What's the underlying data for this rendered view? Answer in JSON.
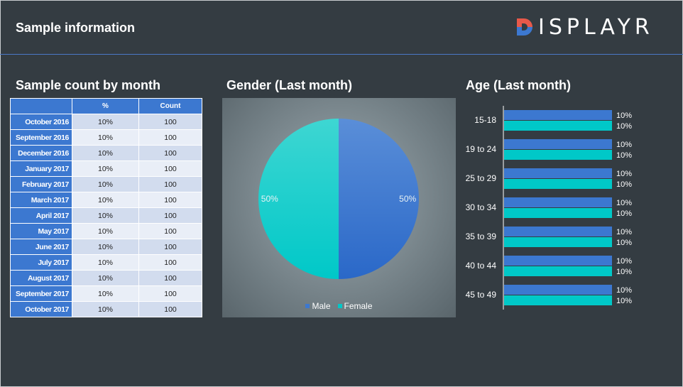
{
  "header": {
    "title": "Sample information",
    "logo_text": "ISPLAYR"
  },
  "sections": {
    "table_title": "Sample count by month",
    "pie_title": "Gender (Last month)",
    "bar_title": "Age (Last month)"
  },
  "colors": {
    "background": "#343c42",
    "blue": "#3c78d0",
    "teal": "#00c8c8",
    "logo_red": "#e8594a",
    "logo_blue": "#3c78d0"
  },
  "chart_data": [
    {
      "type": "table",
      "title": "Sample count by month",
      "columns": [
        "",
        "%",
        "Count"
      ],
      "rows": [
        [
          "October 2016",
          "10%",
          "100"
        ],
        [
          "September 2016",
          "10%",
          "100"
        ],
        [
          "December 2016",
          "10%",
          "100"
        ],
        [
          "January 2017",
          "10%",
          "100"
        ],
        [
          "February 2017",
          "10%",
          "100"
        ],
        [
          "March 2017",
          "10%",
          "100"
        ],
        [
          "April 2017",
          "10%",
          "100"
        ],
        [
          "May 2017",
          "10%",
          "100"
        ],
        [
          "June 2017",
          "10%",
          "100"
        ],
        [
          "July 2017",
          "10%",
          "100"
        ],
        [
          "August 2017",
          "10%",
          "100"
        ],
        [
          "September 2017",
          "10%",
          "100"
        ],
        [
          "October 2017",
          "10%",
          "100"
        ]
      ]
    },
    {
      "type": "pie",
      "title": "Gender (Last month)",
      "slices": [
        {
          "name": "Male",
          "value": 50,
          "label": "50%",
          "color": "#3c78d0"
        },
        {
          "name": "Female",
          "value": 50,
          "label": "50%",
          "color": "#00c8c8"
        }
      ],
      "legend": "bottom"
    },
    {
      "type": "bar",
      "orientation": "horizontal",
      "title": "Age (Last month)",
      "categories": [
        "15-18",
        "19 to 24",
        "25 to 29",
        "30 to 34",
        "35 to 39",
        "40 to 44",
        "45 to 49"
      ],
      "series": [
        {
          "values": [
            10,
            10,
            10,
            10,
            10,
            10,
            10
          ],
          "labels": [
            "10%",
            "10%",
            "10%",
            "10%",
            "10%",
            "10%",
            "10%"
          ],
          "color": "#3c78d0"
        },
        {
          "values": [
            10,
            10,
            10,
            10,
            10,
            10,
            10
          ],
          "labels": [
            "10%",
            "10%",
            "10%",
            "10%",
            "10%",
            "10%",
            "10%"
          ],
          "color": "#00c8c8"
        }
      ],
      "xlim": [
        0,
        10
      ]
    }
  ]
}
